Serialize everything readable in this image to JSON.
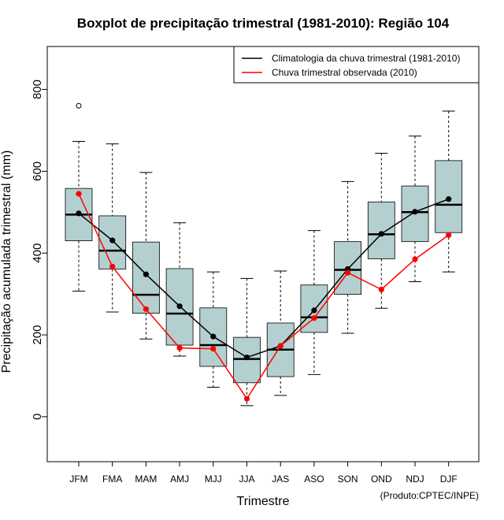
{
  "chart_data": {
    "type": "boxplot",
    "title": "Boxplot de precipitação trimestral (1981-2010): Região 104",
    "xlabel": "Trimestre",
    "ylabel": "Precipitação acumulada trimestral (mm)",
    "credit": "(Produto:CPTEC/INPE)",
    "ylim": [
      -110,
      905
    ],
    "yticks": [
      0,
      200,
      400,
      600,
      800
    ],
    "categories": [
      "JFM",
      "FMA",
      "MAM",
      "AMJ",
      "MJJ",
      "JJA",
      "JAS",
      "ASO",
      "SON",
      "OND",
      "NDJ",
      "DJF"
    ],
    "boxes": [
      {
        "min": 307,
        "q1": 430,
        "median": 494,
        "q3": 558,
        "max": 673,
        "outliers": [
          760
        ]
      },
      {
        "min": 256,
        "q1": 361,
        "median": 406,
        "q3": 491,
        "max": 667,
        "outliers": []
      },
      {
        "min": 190,
        "q1": 253,
        "median": 298,
        "q3": 427,
        "max": 597,
        "outliers": []
      },
      {
        "min": 148,
        "q1": 175,
        "median": 252,
        "q3": 362,
        "max": 474,
        "outliers": []
      },
      {
        "min": 72,
        "q1": 123,
        "median": 175,
        "q3": 266,
        "max": 354,
        "outliers": []
      },
      {
        "min": 27,
        "q1": 83,
        "median": 141,
        "q3": 194,
        "max": 338,
        "outliers": []
      },
      {
        "min": 52,
        "q1": 98,
        "median": 164,
        "q3": 229,
        "max": 356,
        "outliers": []
      },
      {
        "min": 103,
        "q1": 206,
        "median": 243,
        "q3": 322,
        "max": 455,
        "outliers": []
      },
      {
        "min": 204,
        "q1": 299,
        "median": 359,
        "q3": 428,
        "max": 575,
        "outliers": []
      },
      {
        "min": 265,
        "q1": 386,
        "median": 446,
        "q3": 525,
        "max": 644,
        "outliers": []
      },
      {
        "min": 330,
        "q1": 428,
        "median": 500,
        "q3": 564,
        "max": 686,
        "outliers": []
      },
      {
        "min": 354,
        "q1": 450,
        "median": 518,
        "q3": 626,
        "max": 747,
        "outliers": []
      }
    ],
    "series": [
      {
        "name": "Climatologia da chuva trimestral (1981-2010)",
        "color": "#000000",
        "values": [
          497,
          431,
          348,
          270,
          196,
          145,
          173,
          260,
          361,
          447,
          501,
          532
        ]
      },
      {
        "name": "Chuva trimestral observada (2010)",
        "color": "#ff0000",
        "values": [
          545,
          367,
          263,
          168,
          166,
          44,
          173,
          241,
          352,
          311,
          385,
          444
        ]
      }
    ],
    "box_color": "#b4cfcf",
    "legend_position": "top-right"
  }
}
